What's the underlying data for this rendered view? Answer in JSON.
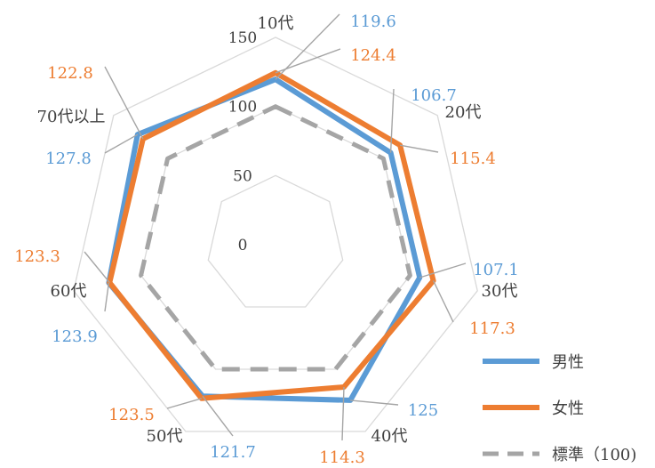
{
  "chart_data": {
    "type": "radar",
    "categories": [
      "10代",
      "20代",
      "30代",
      "40代",
      "50代",
      "60代",
      "70代以上"
    ],
    "rmax": 150,
    "ticks": [
      0,
      50,
      100,
      150
    ],
    "series": [
      {
        "name": "男性",
        "values": [
          119.6,
          106.7,
          107.1,
          125,
          121.7,
          123.9,
          127.8
        ],
        "color": "#5b9bd5",
        "dash": false
      },
      {
        "name": "女性",
        "values": [
          124.4,
          115.4,
          117.3,
          114.3,
          123.5,
          123.3,
          122.8
        ],
        "color": "#ed7d31",
        "dash": false
      },
      {
        "name": "標準（100)",
        "values": [
          100,
          100,
          100,
          100,
          100,
          100,
          100
        ],
        "color": "#a5a5a5",
        "dash": true
      }
    ],
    "data_labels": {
      "男性": [
        "119.6",
        "106.7",
        "107.1",
        "125",
        "121.7",
        "123.9",
        "127.8"
      ],
      "女性": [
        "124.4",
        "115.4",
        "117.3",
        "114.3",
        "123.5",
        "123.3",
        "122.8"
      ]
    },
    "grid": true,
    "legend_position": "right-bottom"
  }
}
